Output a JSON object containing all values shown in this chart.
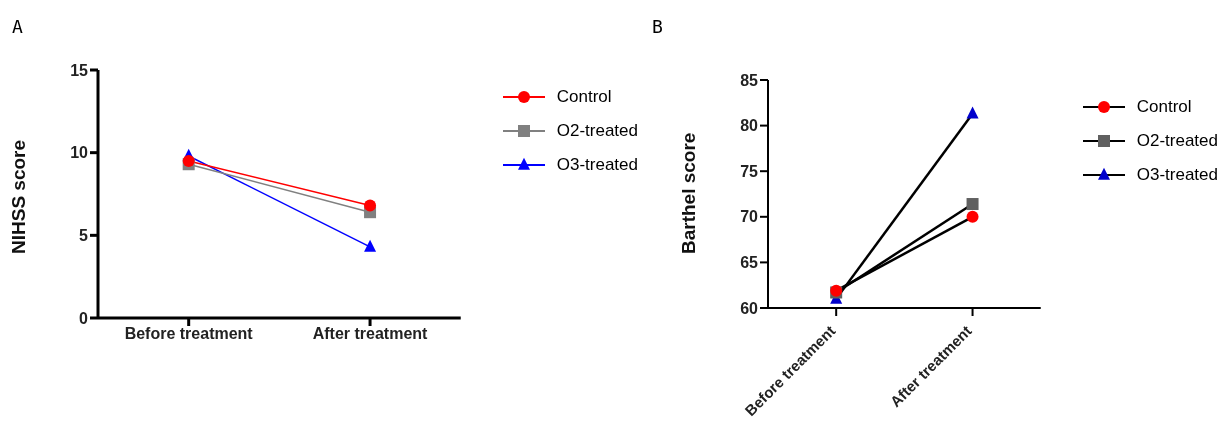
{
  "chart_data": [
    {
      "type": "line",
      "title": "A",
      "ylabel": "NIHSS score",
      "categories": [
        "Before treatment",
        "After treatment"
      ],
      "ylim": [
        0,
        15
      ],
      "yticks": [
        0,
        5,
        10,
        15
      ],
      "grid": false,
      "legend": "right",
      "series": [
        {
          "name": "Control",
          "color": "#ff0000",
          "marker": "circle",
          "values": [
            9.5,
            6.8
          ]
        },
        {
          "name": "O2-treated",
          "color": "#808080",
          "marker": "square",
          "values": [
            9.3,
            6.4
          ]
        },
        {
          "name": "O3-treated",
          "color": "#0000ff",
          "marker": "triangle",
          "values": [
            9.8,
            4.3
          ]
        }
      ]
    },
    {
      "type": "line",
      "title": "B",
      "ylabel": "Barthel score",
      "categories": [
        "Before treatment",
        "After treatment"
      ],
      "ylim": [
        60,
        85
      ],
      "yticks": [
        60,
        65,
        70,
        75,
        80,
        85
      ],
      "grid": false,
      "legend": "right",
      "series": [
        {
          "name": "Control",
          "color": "#000000",
          "colors": [
            "#ff0000",
            "#ff0000"
          ],
          "marker": "circle",
          "values": [
            61.9,
            70.0
          ]
        },
        {
          "name": "O2-treated",
          "color": "#000000",
          "colors": [
            "#606060",
            "#606060"
          ],
          "marker": "square",
          "values": [
            61.7,
            71.4
          ]
        },
        {
          "name": "O3-treated",
          "color": "#000000",
          "colors": [
            "#0000cc",
            "#0000cc"
          ],
          "marker": "triangle",
          "values": [
            61.0,
            81.3
          ]
        }
      ]
    }
  ]
}
